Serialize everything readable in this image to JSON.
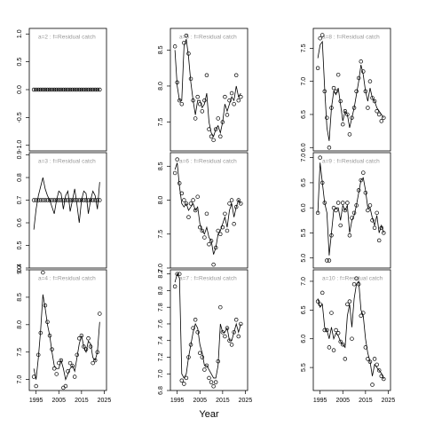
{
  "chart_data": [
    {
      "type": "line",
      "title": "a=2  :  f=Residual catch",
      "xlim": [
        1992,
        2026
      ],
      "ylim": [
        -1.1,
        1.1
      ],
      "yticks": [
        {
          "value": -1,
          "label": "-1.0"
        },
        -0.5,
        {
          "value": 0,
          "label": "0.0"
        },
        0.5,
        {
          "value": 1,
          "label": "1.0"
        }
      ],
      "x": [
        1994,
        1995,
        1996,
        1997,
        1998,
        1999,
        2000,
        2001,
        2002,
        2003,
        2004,
        2005,
        2006,
        2007,
        2008,
        2009,
        2010,
        2011,
        2012,
        2013,
        2014,
        2015,
        2016,
        2017,
        2018,
        2019,
        2020,
        2021,
        2022,
        2023
      ],
      "series": [
        {
          "mode": "points",
          "color": "#000000",
          "values": [
            0,
            0,
            0,
            0,
            0,
            0,
            0,
            0,
            0,
            0,
            0,
            0,
            0,
            0,
            0,
            0,
            0,
            0,
            0,
            0,
            0,
            0,
            0,
            0,
            0,
            0,
            0,
            0,
            0,
            0
          ]
        },
        {
          "mode": "line",
          "color": "#000000",
          "values": [
            0,
            0,
            0,
            0,
            0,
            0,
            0,
            0,
            0,
            0,
            0,
            0,
            0,
            0,
            0,
            0,
            0,
            0,
            0,
            0,
            0,
            0,
            0,
            0,
            0,
            0,
            0,
            0,
            0,
            0
          ]
        }
      ]
    },
    {
      "type": "line",
      "title": "a=3  :  f=Residual catch",
      "xlim": [
        1992,
        2026
      ],
      "ylim": [
        0.4,
        0.91
      ],
      "yticks": [
        0.4,
        0.5,
        0.6,
        0.7,
        0.8,
        0.9
      ],
      "x": [
        1994,
        1995,
        1996,
        1997,
        1998,
        1999,
        2000,
        2001,
        2002,
        2003,
        2004,
        2005,
        2006,
        2007,
        2008,
        2009,
        2010,
        2011,
        2012,
        2013,
        2014,
        2015,
        2016,
        2017,
        2018,
        2019,
        2020,
        2021,
        2022,
        2023
      ],
      "series": [
        {
          "mode": "points",
          "color": "#000000",
          "values": [
            0.7,
            0.7,
            0.7,
            0.7,
            0.7,
            0.7,
            0.7,
            0.7,
            0.7,
            0.7,
            0.7,
            0.7,
            0.7,
            0.7,
            0.7,
            0.7,
            0.7,
            0.7,
            0.7,
            0.7,
            0.7,
            0.7,
            0.7,
            0.7,
            0.7,
            0.7,
            0.7,
            0.7,
            0.7,
            0.7
          ]
        },
        {
          "mode": "line",
          "color": "#000000",
          "values": [
            0.57,
            0.66,
            0.72,
            0.76,
            0.8,
            0.75,
            0.72,
            0.7,
            0.67,
            0.64,
            0.7,
            0.74,
            0.73,
            0.66,
            0.72,
            0.74,
            0.65,
            0.7,
            0.75,
            0.68,
            0.6,
            0.7,
            0.74,
            0.73,
            0.64,
            0.7,
            0.74,
            0.72,
            0.66,
            0.78
          ]
        }
      ]
    },
    {
      "type": "line",
      "title": "a=4  :  f=Residual catch",
      "xlim": [
        1992,
        2026
      ],
      "ylim": [
        6.8,
        9.0
      ],
      "yticks": [
        {
          "value": 7,
          "label": "7.0"
        },
        7.5,
        {
          "value": 8,
          "label": "8.0"
        },
        8.5,
        {
          "value": 9,
          "label": "9.0"
        }
      ],
      "xticks": [
        1995,
        2005,
        2015,
        2025
      ],
      "x": [
        1994,
        1995,
        1996,
        1997,
        1998,
        1999,
        2000,
        2001,
        2002,
        2003,
        2004,
        2005,
        2006,
        2007,
        2008,
        2009,
        2010,
        2011,
        2012,
        2013,
        2014,
        2015,
        2016,
        2017,
        2018,
        2019,
        2020,
        2021,
        2022,
        2023
      ],
      "series": [
        {
          "mode": "points",
          "color": "#000000",
          "values": [
            7.05,
            6.88,
            7.45,
            7.85,
            8.95,
            8.35,
            8.05,
            7.8,
            7.55,
            7.2,
            7.1,
            7.3,
            7.35,
            6.85,
            6.88,
            7.15,
            7.3,
            7.25,
            7.05,
            7.45,
            7.75,
            7.8,
            7.6,
            7.55,
            7.75,
            7.6,
            7.3,
            7.35,
            7.5,
            8.2
          ]
        },
        {
          "mode": "line",
          "color": "#000000",
          "values": [
            7.2,
            7.0,
            7.4,
            7.9,
            8.55,
            8.3,
            8.0,
            7.8,
            7.5,
            7.25,
            7.2,
            7.2,
            7.35,
            7.2,
            7.0,
            7.1,
            7.2,
            7.25,
            7.15,
            7.4,
            7.65,
            7.8,
            7.6,
            7.5,
            7.7,
            7.65,
            7.4,
            7.35,
            7.5,
            8.05
          ]
        }
      ]
    },
    {
      "type": "line",
      "title": "a=5  :  f=Residual catch",
      "xlim": [
        1992,
        2026
      ],
      "ylim": [
        7.1,
        8.8
      ],
      "yticks": [
        7.5,
        {
          "value": 8,
          "label": "8.0"
        },
        8.5
      ],
      "x": [
        1994,
        1995,
        1996,
        1997,
        1998,
        1999,
        2000,
        2001,
        2002,
        2003,
        2004,
        2005,
        2006,
        2007,
        2008,
        2009,
        2010,
        2011,
        2012,
        2013,
        2014,
        2015,
        2016,
        2017,
        2018,
        2019,
        2020,
        2021,
        2022,
        2023
      ],
      "series": [
        {
          "mode": "points",
          "color": "#000000",
          "values": [
            8.55,
            8.05,
            7.8,
            7.75,
            8.6,
            8.7,
            8.45,
            8.1,
            7.8,
            7.55,
            7.85,
            7.75,
            7.65,
            7.8,
            8.15,
            7.4,
            7.3,
            7.25,
            7.4,
            7.55,
            7.3,
            7.5,
            7.85,
            7.6,
            7.8,
            7.9,
            7.75,
            8.15,
            7.8,
            7.85
          ]
        },
        {
          "mode": "line",
          "color": "#000000",
          "values": [
            8.5,
            8.0,
            7.8,
            7.8,
            8.55,
            8.65,
            8.4,
            8.05,
            7.8,
            7.6,
            7.8,
            7.8,
            7.7,
            7.75,
            7.9,
            7.5,
            7.35,
            7.3,
            7.4,
            7.45,
            7.35,
            7.5,
            7.75,
            7.65,
            7.75,
            7.85,
            7.8,
            8.0,
            7.85,
            7.9
          ]
        }
      ]
    },
    {
      "type": "line",
      "title": "a=6  :  f=Residual catch",
      "xlim": [
        1992,
        2026
      ],
      "ylim": [
        7.0,
        8.7
      ],
      "yticks": [
        {
          "value": 7,
          "label": "7.0"
        },
        7.5,
        {
          "value": 8,
          "label": "8.0"
        },
        8.5
      ],
      "x": [
        1994,
        1995,
        1996,
        1997,
        1998,
        1999,
        2000,
        2001,
        2002,
        2003,
        2004,
        2005,
        2006,
        2007,
        2008,
        2009,
        2010,
        2011,
        2012,
        2013,
        2014,
        2015,
        2016,
        2017,
        2018,
        2019,
        2020,
        2021,
        2022,
        2023
      ],
      "series": [
        {
          "mode": "points",
          "color": "#000000",
          "values": [
            8.4,
            8.6,
            8.25,
            8.1,
            8.0,
            7.95,
            7.75,
            7.95,
            8.0,
            7.85,
            8.05,
            7.6,
            7.55,
            7.45,
            7.8,
            7.35,
            7.4,
            7.05,
            7.3,
            7.55,
            7.5,
            7.6,
            7.8,
            7.55,
            7.95,
            8.0,
            7.65,
            7.9,
            8.0,
            7.95
          ]
        },
        {
          "mode": "line",
          "color": "#000000",
          "values": [
            8.45,
            8.55,
            8.2,
            7.95,
            7.9,
            7.95,
            7.85,
            7.9,
            7.95,
            7.85,
            7.9,
            7.65,
            7.55,
            7.5,
            7.6,
            7.45,
            7.4,
            7.2,
            7.3,
            7.5,
            7.55,
            7.65,
            7.75,
            7.6,
            7.85,
            7.95,
            7.75,
            7.9,
            8.0,
            7.95
          ]
        }
      ]
    },
    {
      "type": "line",
      "title": "a=7  :  f=Residual catch",
      "xlim": [
        1992,
        2026
      ],
      "ylim": [
        6.8,
        8.25
      ],
      "yticks": [
        6.8,
        {
          "value": 7,
          "label": "7.0"
        },
        7.2,
        7.4,
        7.6,
        7.8,
        {
          "value": 8,
          "label": "8.0"
        },
        8.2
      ],
      "xticks": [
        1995,
        2005,
        2015,
        2025
      ],
      "xlabel": "Year",
      "x": [
        1994,
        1995,
        1996,
        1997,
        1998,
        1999,
        2000,
        2001,
        2002,
        2003,
        2004,
        2005,
        2006,
        2007,
        2008,
        2009,
        2010,
        2011,
        2012,
        2013,
        2014,
        2015,
        2016,
        2017,
        2018,
        2019,
        2020,
        2021,
        2022,
        2023
      ],
      "series": [
        {
          "mode": "points",
          "color": "#000000",
          "values": [
            8.05,
            8.2,
            8.2,
            6.92,
            6.88,
            6.95,
            7.2,
            7.35,
            7.55,
            7.65,
            7.5,
            7.25,
            7.2,
            7.05,
            7.1,
            6.95,
            6.9,
            6.85,
            6.9,
            7.15,
            7.8,
            7.5,
            7.45,
            7.55,
            7.4,
            7.35,
            7.5,
            7.65,
            7.45,
            7.6
          ]
        },
        {
          "mode": "line",
          "color": "#000000",
          "values": [
            8.1,
            8.2,
            8.15,
            7.0,
            6.95,
            7.0,
            7.2,
            7.35,
            7.5,
            7.6,
            7.55,
            7.35,
            7.25,
            7.1,
            7.1,
            7.05,
            7.0,
            6.95,
            6.95,
            7.1,
            7.6,
            7.5,
            7.5,
            7.55,
            7.4,
            7.4,
            7.5,
            7.6,
            7.5,
            7.6
          ]
        }
      ]
    },
    {
      "type": "line",
      "title": "a=8  :  f=Residual catch",
      "xlim": [
        1992,
        2026
      ],
      "ylim": [
        5.95,
        7.8
      ],
      "yticks": [
        {
          "value": 6,
          "label": "6.0"
        },
        6.5,
        {
          "value": 7,
          "label": "7.0"
        },
        7.5
      ],
      "x": [
        1994,
        1995,
        1996,
        1997,
        1998,
        1999,
        2000,
        2001,
        2002,
        2003,
        2004,
        2005,
        2006,
        2007,
        2008,
        2009,
        2010,
        2011,
        2012,
        2013,
        2014,
        2015,
        2016,
        2017,
        2018,
        2019,
        2020,
        2021,
        2022,
        2023
      ],
      "series": [
        {
          "mode": "points",
          "color": "#000000",
          "values": [
            7.2,
            7.65,
            7.7,
            6.85,
            6.45,
            6.0,
            6.6,
            6.9,
            6.85,
            7.1,
            6.7,
            6.35,
            6.55,
            6.5,
            6.2,
            6.45,
            6.6,
            6.85,
            7.05,
            7.3,
            7.15,
            6.85,
            6.6,
            7.0,
            6.75,
            6.7,
            6.55,
            6.5,
            6.4,
            6.45
          ]
        },
        {
          "mode": "line",
          "color": "#000000",
          "values": [
            7.35,
            7.55,
            7.6,
            6.9,
            6.3,
            6.1,
            6.6,
            6.85,
            6.8,
            6.9,
            6.65,
            6.4,
            6.55,
            6.5,
            6.3,
            6.45,
            6.6,
            6.8,
            7.0,
            7.25,
            7.1,
            6.85,
            6.7,
            6.9,
            6.75,
            6.7,
            6.6,
            6.55,
            6.5,
            6.45
          ]
        }
      ]
    },
    {
      "type": "line",
      "title": "a=9  :  f=Residual catch",
      "xlim": [
        1992,
        2026
      ],
      "ylim": [
        4.8,
        7.1
      ],
      "yticks": [
        {
          "value": 5,
          "label": "5.0"
        },
        5.5,
        {
          "value": 6,
          "label": "6.0"
        },
        6.5,
        {
          "value": 7,
          "label": "7.0"
        }
      ],
      "x": [
        1994,
        1995,
        1996,
        1997,
        1998,
        1999,
        2000,
        2001,
        2002,
        2003,
        2004,
        2005,
        2006,
        2007,
        2008,
        2009,
        2010,
        2011,
        2012,
        2013,
        2014,
        2015,
        2016,
        2017,
        2018,
        2019,
        2020,
        2021,
        2022,
        2023
      ],
      "series": [
        {
          "mode": "points",
          "color": "#000000",
          "values": [
            5.9,
            7.0,
            6.5,
            6.1,
            4.95,
            4.95,
            5.45,
            6.0,
            5.95,
            6.1,
            5.65,
            6.1,
            5.95,
            6.1,
            5.45,
            5.8,
            5.9,
            6.05,
            6.35,
            6.55,
            6.7,
            6.3,
            5.95,
            6.05,
            5.75,
            5.6,
            5.9,
            5.35,
            5.6,
            5.5
          ]
        },
        {
          "mode": "line",
          "color": "#000000",
          "values": [
            5.9,
            6.9,
            6.5,
            6.1,
            5.9,
            5.05,
            5.5,
            5.95,
            6.0,
            6.0,
            5.75,
            6.05,
            5.95,
            6.05,
            5.5,
            5.75,
            5.85,
            6.05,
            6.3,
            6.55,
            6.6,
            6.35,
            6.0,
            6.0,
            5.8,
            5.65,
            5.85,
            5.5,
            5.65,
            5.5
          ]
        }
      ]
    },
    {
      "type": "line",
      "title": "a=10  :  f=Residual catch",
      "xlim": [
        1992,
        2026
      ],
      "ylim": [
        5.1,
        7.2
      ],
      "yticks": [
        5.5,
        {
          "value": 6,
          "label": "6.0"
        },
        6.5,
        {
          "value": 7,
          "label": "7.0"
        }
      ],
      "xticks": [
        1995,
        2005,
        2015,
        2025
      ],
      "x": [
        1994,
        1995,
        1996,
        1997,
        1998,
        1999,
        2000,
        2001,
        2002,
        2003,
        2004,
        2005,
        2006,
        2007,
        2008,
        2009,
        2010,
        2011,
        2012,
        2013,
        2014,
        2015,
        2016,
        2017,
        2018,
        2019,
        2020,
        2021,
        2022,
        2023
      ],
      "series": [
        {
          "mode": "points",
          "color": "#000000",
          "values": [
            6.65,
            6.6,
            6.8,
            6.15,
            6.15,
            5.85,
            6.45,
            5.8,
            6.15,
            6.1,
            5.95,
            5.9,
            5.65,
            6.6,
            6.65,
            6.0,
            6.95,
            7.05,
            6.95,
            6.4,
            6.45,
            5.85,
            5.65,
            5.6,
            5.2,
            5.65,
            5.55,
            5.45,
            5.35,
            5.3
          ]
        },
        {
          "mode": "line",
          "color": "#000000",
          "values": [
            6.7,
            6.55,
            6.6,
            6.2,
            6.15,
            6.0,
            6.2,
            6.0,
            6.1,
            6.05,
            5.95,
            5.9,
            5.85,
            6.4,
            6.6,
            6.2,
            6.7,
            6.95,
            7.0,
            6.5,
            6.4,
            6.0,
            5.75,
            5.6,
            5.35,
            5.55,
            5.5,
            5.45,
            5.4,
            5.3
          ]
        }
      ]
    }
  ]
}
